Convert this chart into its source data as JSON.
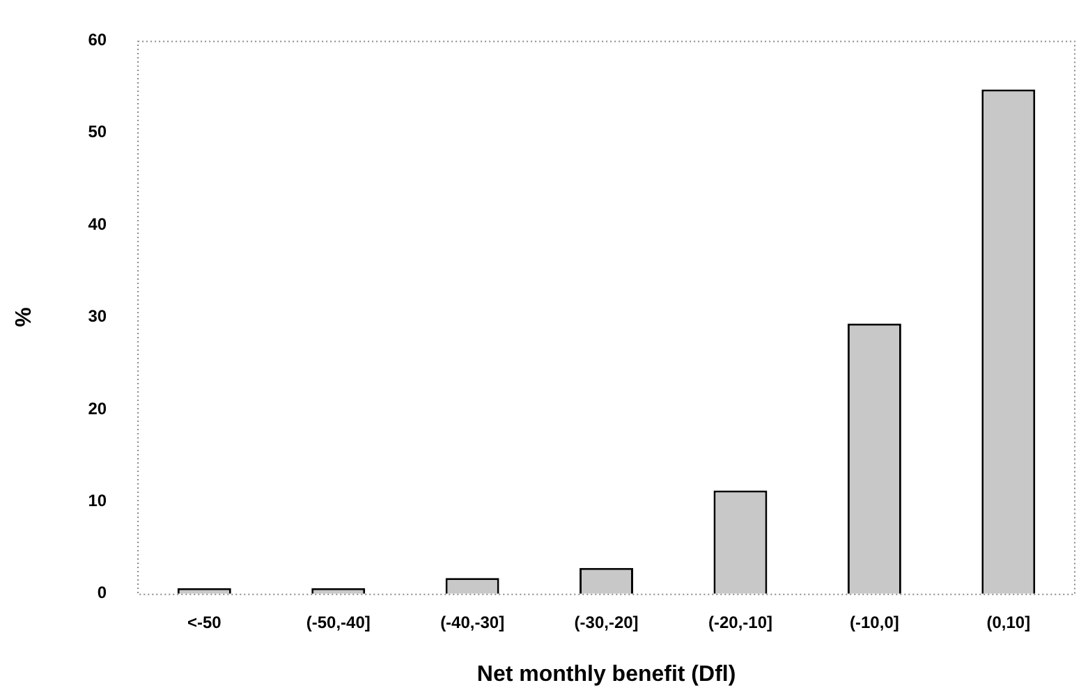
{
  "chart_data": {
    "type": "bar",
    "xlabel": "Net monthly benefit (Dfl)",
    "ylabel": "%",
    "categories": [
      "<-50",
      "(-50,-40]",
      "(-40,-30]",
      "(-30,-20]",
      "(-20,-10]",
      "(-10,0]",
      "(0,10]"
    ],
    "values": [
      0.6,
      0.6,
      1.7,
      2.8,
      11.2,
      29.3,
      54.7
    ],
    "color": "#c8c8c8",
    "ylim": [
      0,
      60
    ],
    "yticks": [
      0,
      10,
      20,
      30,
      40,
      50,
      60
    ],
    "grid": false,
    "legend": false
  }
}
